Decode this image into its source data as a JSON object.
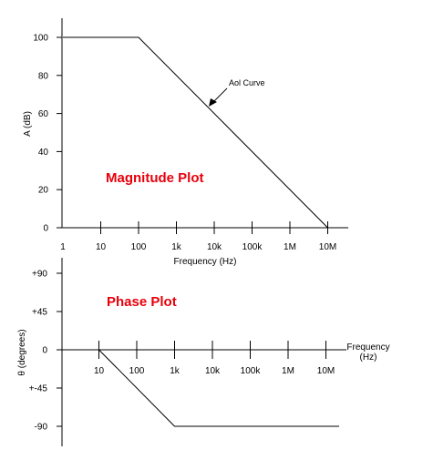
{
  "colors": {
    "title": "#e8000b",
    "line": "#000000"
  },
  "chart_data": [
    {
      "type": "line",
      "title": "Magnitude Plot",
      "xlabel": "Frequency (Hz)",
      "ylabel": "A (dB)",
      "x_scale": "log",
      "x_ticks": [
        1,
        10,
        100,
        1000,
        10000,
        100000,
        1000000,
        10000000
      ],
      "x_tick_labels": [
        "1",
        "10",
        "100",
        "1k",
        "10k",
        "100k",
        "1M",
        "10M"
      ],
      "y_ticks": [
        0,
        20,
        40,
        60,
        80,
        100
      ],
      "y_tick_labels": [
        "0",
        "20",
        "40",
        "60",
        "80",
        "100"
      ],
      "ylim": [
        0,
        100
      ],
      "series": [
        {
          "name": "Aol Curve",
          "x": [
            1,
            100,
            10000000
          ],
          "y": [
            100,
            100,
            0
          ]
        }
      ],
      "annotations": [
        {
          "text": "Aol Curve",
          "x": 10000,
          "y": 60
        }
      ]
    },
    {
      "type": "line",
      "title": "Phase Plot",
      "xlabel": "Frequency\n(Hz)",
      "xlabel_lines": [
        "Frequency",
        "(Hz)"
      ],
      "ylabel": "θ (degrees)",
      "x_scale": "log",
      "x_ticks": [
        10,
        100,
        1000,
        10000,
        100000,
        1000000,
        10000000
      ],
      "x_tick_labels": [
        "10",
        "100",
        "1k",
        "10k",
        "100k",
        "1M",
        "10M"
      ],
      "y_ticks": [
        90,
        45,
        0,
        -45,
        -90
      ],
      "y_tick_labels": [
        "+90",
        "+45",
        "0",
        "+-45",
        "-90"
      ],
      "ylim": [
        -110,
        110
      ],
      "series": [
        {
          "x": [
            10,
            1000,
            100000000
          ],
          "y": [
            0,
            -90,
            -90
          ]
        }
      ]
    }
  ]
}
